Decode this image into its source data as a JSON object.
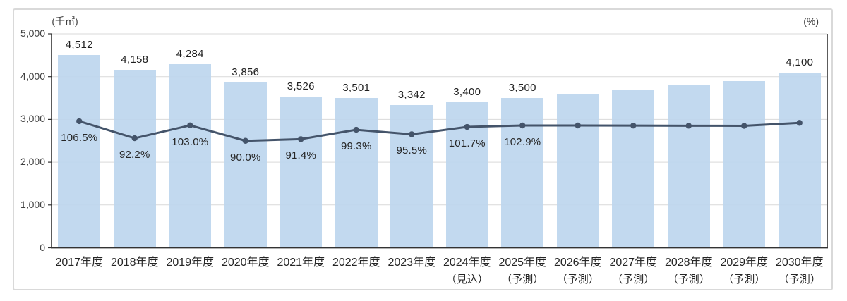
{
  "chart_data": {
    "type": "combo-bar-line",
    "title": "",
    "legend": "none",
    "grid": true,
    "categories": [
      "2017年度",
      "2018年度",
      "2019年度",
      "2020年度",
      "2021年度",
      "2022年度",
      "2023年度",
      "2024年度",
      "2025年度",
      "2026年度",
      "2027年度",
      "2028年度",
      "2029年度",
      "2030年度"
    ],
    "category_notes": [
      "",
      "",
      "",
      "",
      "",
      "",
      "",
      "（見込）",
      "（予測）",
      "（予測）",
      "（予測）",
      "（予測）",
      "（予測）",
      "（予測）"
    ],
    "bar_series": {
      "color": "#bdd6ee",
      "values": [
        4512,
        4158,
        4284,
        3856,
        3526,
        3501,
        3342,
        3400,
        3500,
        3600,
        3700,
        3800,
        3900,
        4100
      ],
      "data_labels": [
        "4,512",
        "4,158",
        "4,284",
        "3,856",
        "3,526",
        "3,501",
        "3,342",
        "3,400",
        "3,500",
        "",
        "",
        "",
        "",
        "4,100"
      ]
    },
    "line_series": {
      "color": "#44546a",
      "values": [
        106.5,
        92.2,
        103.0,
        90.0,
        91.4,
        99.3,
        95.5,
        101.7,
        102.9,
        102.9,
        102.8,
        102.7,
        102.6,
        105.1
      ],
      "data_labels": [
        "106.5%",
        "92.2%",
        "103.0%",
        "90.0%",
        "91.4%",
        "99.3%",
        "95.5%",
        "101.7%",
        "102.9%",
        "",
        "",
        "",
        "",
        ""
      ]
    },
    "left_axis": {
      "unit": "(千㎡)",
      "min": 0,
      "max": 5000,
      "step": 1000,
      "tick_labels": [
        "5,000",
        "4,000",
        "3,000",
        "2,000",
        "1,000",
        "0"
      ]
    },
    "right_axis": {
      "unit": "(%)",
      "min": 0,
      "max": 180,
      "ticks_visible": false
    },
    "colors": {
      "gridline": "#d9d9d9",
      "axis": "#333333",
      "frame_border": "#d9d9d9"
    }
  }
}
